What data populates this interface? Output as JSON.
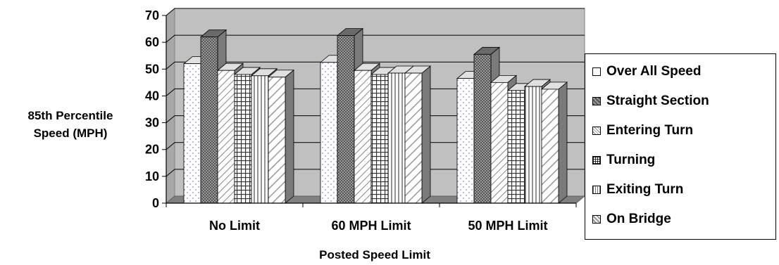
{
  "chart_data": {
    "type": "bar",
    "title": "",
    "xlabel": "Posted Speed Limit",
    "ylabel_lines": [
      "85th Percentile",
      "Speed (MPH)"
    ],
    "ylim": [
      0,
      70
    ],
    "yticks": [
      0,
      10,
      20,
      30,
      40,
      50,
      60,
      70
    ],
    "grid": true,
    "legend_position": "right",
    "categories": [
      "No Limit",
      "60 MPH Limit",
      "50 MPH Limit"
    ],
    "series": [
      {
        "name": "Over All  Speed",
        "values": [
          52,
          52.5,
          46.5
        ],
        "color": "#ffffff",
        "pattern": "dots"
      },
      {
        "name": "Straight Section",
        "values": [
          62,
          62.5,
          55.5
        ],
        "color": "#808080",
        "pattern": "dense"
      },
      {
        "name": "Entering Turn",
        "values": [
          49.5,
          49.5,
          45
        ],
        "color": "#ffffff",
        "pattern": "diag"
      },
      {
        "name": "Turning",
        "values": [
          48,
          48,
          42
        ],
        "color": "#ffffff",
        "pattern": "grid"
      },
      {
        "name": "Exiting Turn",
        "values": [
          47.5,
          48.5,
          43.5
        ],
        "color": "#ffffff",
        "pattern": "vert"
      },
      {
        "name": "On Bridge",
        "values": [
          47,
          48.5,
          42.5
        ],
        "color": "#ffffff",
        "pattern": "diag2"
      }
    ]
  }
}
